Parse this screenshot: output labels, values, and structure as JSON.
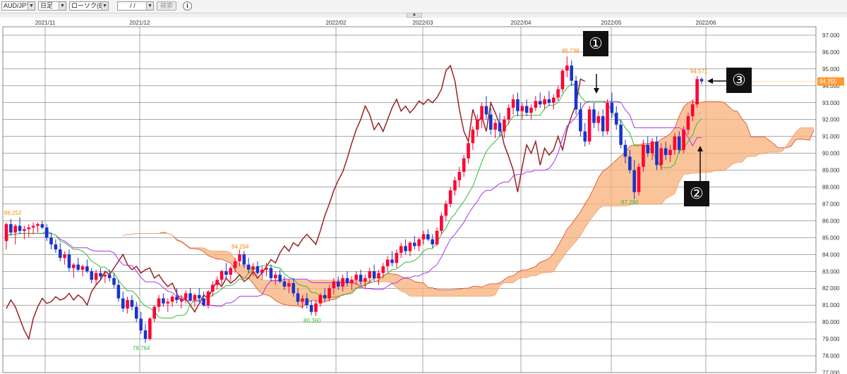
{
  "toolbar": {
    "pair": "AUD/JPY",
    "period": "日足",
    "chart_kind": "ローソク(BID)",
    "date_value": "/ /",
    "search_label": "検索",
    "info_label": "i"
  },
  "collapse_glyph": "▲",
  "callouts": {
    "one": "①",
    "two": "②",
    "three": "③"
  },
  "colors": {
    "up": "#ff0033",
    "down": "#1a33cc",
    "kijun": "#aa33ee",
    "tenkan": "#33bb33",
    "chikou": "#992222",
    "cloud_fill": "#f8b07a",
    "span_a": "#dd4422",
    "span_b": "#f0a070",
    "marker_high": "#ff8800",
    "marker_low": "#33bb33",
    "price_tag": "#ff9933"
  },
  "chart_data": {
    "type": "candlestick",
    "title": "",
    "ylim": [
      77.0,
      97.5
    ],
    "y_ticks": [
      "97.000",
      "96.000",
      "95.000",
      "94.000",
      "93.000",
      "92.000",
      "91.000",
      "90.000",
      "89.000",
      "88.000",
      "87.000",
      "86.000",
      "85.000",
      "84.000",
      "83.000",
      "82.000",
      "81.000",
      "80.000",
      "79.000",
      "78.000",
      "77.000"
    ],
    "x_labels": [
      "2021/11",
      "2021/12",
      "2022/02",
      "2022/03",
      "2022/04",
      "2022/05",
      "2022/06"
    ],
    "current_price": "94.255",
    "annotations": {
      "high_1": "95.738",
      "high_2": "94.571",
      "high_3": "84.294",
      "high_left": "86.252",
      "low_1": "78.764",
      "low_2": "80.360",
      "low_3": "87.290"
    },
    "candles": [
      {
        "o": 84.8,
        "h": 85.9,
        "l": 84.3,
        "c": 85.8
      },
      {
        "o": 85.8,
        "h": 86.1,
        "l": 85.1,
        "c": 85.3
      },
      {
        "o": 85.3,
        "h": 85.8,
        "l": 84.6,
        "c": 85.7
      },
      {
        "o": 85.7,
        "h": 86.2,
        "l": 85.2,
        "c": 85.4
      },
      {
        "o": 85.4,
        "h": 85.7,
        "l": 84.9,
        "c": 85.5
      },
      {
        "o": 85.5,
        "h": 85.8,
        "l": 85.0,
        "c": 85.6
      },
      {
        "o": 85.6,
        "h": 85.9,
        "l": 85.2,
        "c": 85.7
      },
      {
        "o": 85.7,
        "h": 85.9,
        "l": 85.3,
        "c": 85.8
      },
      {
        "o": 85.8,
        "h": 86.0,
        "l": 85.5,
        "c": 85.6
      },
      {
        "o": 85.6,
        "h": 85.8,
        "l": 84.8,
        "c": 85.0
      },
      {
        "o": 85.0,
        "h": 85.3,
        "l": 84.3,
        "c": 84.6
      },
      {
        "o": 84.6,
        "h": 84.9,
        "l": 84.1,
        "c": 84.3
      },
      {
        "o": 84.3,
        "h": 84.7,
        "l": 83.6,
        "c": 83.8
      },
      {
        "o": 83.8,
        "h": 84.2,
        "l": 83.4,
        "c": 84.0
      },
      {
        "o": 84.0,
        "h": 84.3,
        "l": 83.0,
        "c": 83.2
      },
      {
        "o": 83.2,
        "h": 83.5,
        "l": 82.6,
        "c": 83.4
      },
      {
        "o": 83.4,
        "h": 83.8,
        "l": 83.0,
        "c": 83.1
      },
      {
        "o": 83.1,
        "h": 83.4,
        "l": 82.7,
        "c": 83.3
      },
      {
        "o": 83.3,
        "h": 83.7,
        "l": 82.9,
        "c": 83.0
      },
      {
        "o": 83.0,
        "h": 83.2,
        "l": 82.3,
        "c": 82.5
      },
      {
        "o": 82.5,
        "h": 83.1,
        "l": 82.2,
        "c": 82.9
      },
      {
        "o": 82.9,
        "h": 83.2,
        "l": 82.5,
        "c": 82.7
      },
      {
        "o": 82.7,
        "h": 83.0,
        "l": 82.3,
        "c": 82.8
      },
      {
        "o": 82.8,
        "h": 83.1,
        "l": 82.4,
        "c": 82.6
      },
      {
        "o": 82.6,
        "h": 82.9,
        "l": 82.0,
        "c": 82.2
      },
      {
        "o": 82.2,
        "h": 82.5,
        "l": 81.2,
        "c": 81.4
      },
      {
        "o": 81.4,
        "h": 81.8,
        "l": 80.6,
        "c": 80.8
      },
      {
        "o": 80.8,
        "h": 81.5,
        "l": 80.5,
        "c": 81.3
      },
      {
        "o": 81.3,
        "h": 81.6,
        "l": 80.7,
        "c": 80.9
      },
      {
        "o": 80.9,
        "h": 81.2,
        "l": 80.0,
        "c": 80.2
      },
      {
        "o": 80.2,
        "h": 80.6,
        "l": 79.3,
        "c": 79.5
      },
      {
        "o": 79.5,
        "h": 79.9,
        "l": 78.76,
        "c": 79.0
      },
      {
        "o": 79.0,
        "h": 80.3,
        "l": 78.9,
        "c": 80.2
      },
      {
        "o": 80.2,
        "h": 81.0,
        "l": 80.0,
        "c": 80.9
      },
      {
        "o": 80.9,
        "h": 81.6,
        "l": 80.6,
        "c": 81.4
      },
      {
        "o": 81.4,
        "h": 81.7,
        "l": 80.9,
        "c": 81.1
      },
      {
        "o": 81.1,
        "h": 81.4,
        "l": 80.6,
        "c": 81.2
      },
      {
        "o": 81.2,
        "h": 81.6,
        "l": 80.9,
        "c": 81.5
      },
      {
        "o": 81.5,
        "h": 82.0,
        "l": 81.1,
        "c": 81.3
      },
      {
        "o": 81.3,
        "h": 81.6,
        "l": 80.8,
        "c": 81.4
      },
      {
        "o": 81.4,
        "h": 81.9,
        "l": 81.1,
        "c": 81.7
      },
      {
        "o": 81.7,
        "h": 82.0,
        "l": 81.2,
        "c": 81.3
      },
      {
        "o": 81.3,
        "h": 81.7,
        "l": 80.9,
        "c": 81.6
      },
      {
        "o": 81.6,
        "h": 82.0,
        "l": 81.2,
        "c": 81.4
      },
      {
        "o": 81.4,
        "h": 81.8,
        "l": 80.9,
        "c": 81.0
      },
      {
        "o": 81.0,
        "h": 81.9,
        "l": 80.8,
        "c": 81.8
      },
      {
        "o": 81.8,
        "h": 82.4,
        "l": 81.5,
        "c": 82.2
      },
      {
        "o": 82.2,
        "h": 82.7,
        "l": 81.9,
        "c": 82.5
      },
      {
        "o": 82.5,
        "h": 83.1,
        "l": 82.2,
        "c": 83.0
      },
      {
        "o": 83.0,
        "h": 83.5,
        "l": 82.6,
        "c": 82.8
      },
      {
        "o": 82.8,
        "h": 83.3,
        "l": 82.4,
        "c": 83.2
      },
      {
        "o": 83.2,
        "h": 83.8,
        "l": 82.9,
        "c": 83.6
      },
      {
        "o": 83.6,
        "h": 84.29,
        "l": 83.3,
        "c": 84.0
      },
      {
        "o": 84.0,
        "h": 84.2,
        "l": 83.2,
        "c": 83.4
      },
      {
        "o": 83.4,
        "h": 83.8,
        "l": 82.9,
        "c": 83.1
      },
      {
        "o": 83.1,
        "h": 83.5,
        "l": 82.7,
        "c": 83.3
      },
      {
        "o": 83.3,
        "h": 83.6,
        "l": 82.8,
        "c": 82.9
      },
      {
        "o": 82.9,
        "h": 83.3,
        "l": 82.5,
        "c": 83.1
      },
      {
        "o": 83.1,
        "h": 83.5,
        "l": 82.7,
        "c": 83.2
      },
      {
        "o": 83.2,
        "h": 83.4,
        "l": 82.4,
        "c": 82.6
      },
      {
        "o": 82.6,
        "h": 83.0,
        "l": 82.2,
        "c": 82.8
      },
      {
        "o": 82.8,
        "h": 83.1,
        "l": 82.3,
        "c": 82.4
      },
      {
        "o": 82.4,
        "h": 82.7,
        "l": 81.9,
        "c": 82.1
      },
      {
        "o": 82.1,
        "h": 82.5,
        "l": 81.7,
        "c": 82.3
      },
      {
        "o": 82.3,
        "h": 82.6,
        "l": 81.5,
        "c": 81.7
      },
      {
        "o": 81.7,
        "h": 82.0,
        "l": 81.0,
        "c": 81.2
      },
      {
        "o": 81.2,
        "h": 81.6,
        "l": 80.8,
        "c": 81.4
      },
      {
        "o": 81.4,
        "h": 81.7,
        "l": 80.8,
        "c": 81.0
      },
      {
        "o": 81.0,
        "h": 81.3,
        "l": 80.4,
        "c": 80.6
      },
      {
        "o": 80.6,
        "h": 81.3,
        "l": 80.36,
        "c": 81.1
      },
      {
        "o": 81.1,
        "h": 81.7,
        "l": 80.9,
        "c": 81.6
      },
      {
        "o": 81.6,
        "h": 82.0,
        "l": 81.2,
        "c": 81.4
      },
      {
        "o": 81.4,
        "h": 82.2,
        "l": 81.2,
        "c": 82.0
      },
      {
        "o": 82.0,
        "h": 82.6,
        "l": 81.6,
        "c": 82.4
      },
      {
        "o": 82.4,
        "h": 82.7,
        "l": 81.9,
        "c": 82.1
      },
      {
        "o": 82.1,
        "h": 82.8,
        "l": 81.8,
        "c": 82.6
      },
      {
        "o": 82.6,
        "h": 83.0,
        "l": 82.1,
        "c": 82.3
      },
      {
        "o": 82.3,
        "h": 82.7,
        "l": 81.9,
        "c": 82.5
      },
      {
        "o": 82.5,
        "h": 83.0,
        "l": 82.2,
        "c": 82.8
      },
      {
        "o": 82.8,
        "h": 83.1,
        "l": 82.2,
        "c": 82.4
      },
      {
        "o": 82.4,
        "h": 82.8,
        "l": 82.0,
        "c": 82.6
      },
      {
        "o": 82.6,
        "h": 83.2,
        "l": 82.3,
        "c": 83.0
      },
      {
        "o": 83.0,
        "h": 83.4,
        "l": 82.4,
        "c": 82.6
      },
      {
        "o": 82.6,
        "h": 83.1,
        "l": 82.2,
        "c": 82.9
      },
      {
        "o": 82.9,
        "h": 83.5,
        "l": 82.6,
        "c": 83.3
      },
      {
        "o": 83.3,
        "h": 83.9,
        "l": 83.0,
        "c": 83.7
      },
      {
        "o": 83.7,
        "h": 84.2,
        "l": 83.3,
        "c": 83.5
      },
      {
        "o": 83.5,
        "h": 84.3,
        "l": 83.2,
        "c": 84.1
      },
      {
        "o": 84.1,
        "h": 84.7,
        "l": 83.8,
        "c": 84.5
      },
      {
        "o": 84.5,
        "h": 84.9,
        "l": 84.0,
        "c": 84.2
      },
      {
        "o": 84.2,
        "h": 84.8,
        "l": 83.9,
        "c": 84.7
      },
      {
        "o": 84.7,
        "h": 85.1,
        "l": 84.3,
        "c": 84.5
      },
      {
        "o": 84.5,
        "h": 85.0,
        "l": 84.2,
        "c": 84.9
      },
      {
        "o": 84.9,
        "h": 85.4,
        "l": 84.6,
        "c": 85.2
      },
      {
        "o": 85.2,
        "h": 85.5,
        "l": 84.8,
        "c": 84.9
      },
      {
        "o": 84.9,
        "h": 85.2,
        "l": 84.4,
        "c": 84.6
      },
      {
        "o": 84.6,
        "h": 85.6,
        "l": 84.5,
        "c": 85.4
      },
      {
        "o": 85.4,
        "h": 86.5,
        "l": 85.2,
        "c": 86.3
      },
      {
        "o": 86.3,
        "h": 87.2,
        "l": 86.0,
        "c": 87.0
      },
      {
        "o": 87.0,
        "h": 88.0,
        "l": 86.8,
        "c": 87.8
      },
      {
        "o": 87.8,
        "h": 88.6,
        "l": 87.5,
        "c": 88.4
      },
      {
        "o": 88.4,
        "h": 89.2,
        "l": 88.0,
        "c": 88.9
      },
      {
        "o": 88.9,
        "h": 89.9,
        "l": 88.6,
        "c": 89.7
      },
      {
        "o": 89.7,
        "h": 90.8,
        "l": 89.4,
        "c": 90.6
      },
      {
        "o": 90.6,
        "h": 91.6,
        "l": 90.2,
        "c": 91.4
      },
      {
        "o": 91.4,
        "h": 92.3,
        "l": 91.0,
        "c": 92.0
      },
      {
        "o": 92.0,
        "h": 93.0,
        "l": 91.5,
        "c": 92.8
      },
      {
        "o": 92.8,
        "h": 93.4,
        "l": 92.0,
        "c": 92.3
      },
      {
        "o": 92.3,
        "h": 92.7,
        "l": 91.1,
        "c": 91.4
      },
      {
        "o": 91.4,
        "h": 92.0,
        "l": 90.9,
        "c": 91.8
      },
      {
        "o": 91.8,
        "h": 92.4,
        "l": 91.0,
        "c": 91.3
      },
      {
        "o": 91.3,
        "h": 92.2,
        "l": 90.9,
        "c": 92.0
      },
      {
        "o": 92.0,
        "h": 92.9,
        "l": 91.7,
        "c": 92.7
      },
      {
        "o": 92.7,
        "h": 93.5,
        "l": 92.3,
        "c": 93.2
      },
      {
        "o": 93.2,
        "h": 93.6,
        "l": 92.2,
        "c": 92.5
      },
      {
        "o": 92.5,
        "h": 93.0,
        "l": 92.0,
        "c": 92.8
      },
      {
        "o": 92.8,
        "h": 93.2,
        "l": 92.2,
        "c": 92.4
      },
      {
        "o": 92.4,
        "h": 92.9,
        "l": 92.0,
        "c": 92.7
      },
      {
        "o": 92.7,
        "h": 93.4,
        "l": 92.5,
        "c": 93.1
      },
      {
        "o": 93.1,
        "h": 93.6,
        "l": 92.7,
        "c": 92.9
      },
      {
        "o": 92.9,
        "h": 93.4,
        "l": 92.6,
        "c": 93.2
      },
      {
        "o": 93.2,
        "h": 93.7,
        "l": 92.8,
        "c": 93.0
      },
      {
        "o": 93.0,
        "h": 93.5,
        "l": 92.6,
        "c": 93.3
      },
      {
        "o": 93.3,
        "h": 94.0,
        "l": 93.1,
        "c": 93.8
      },
      {
        "o": 93.8,
        "h": 95.0,
        "l": 93.6,
        "c": 94.9
      },
      {
        "o": 94.9,
        "h": 95.74,
        "l": 94.5,
        "c": 95.2
      },
      {
        "o": 95.2,
        "h": 95.5,
        "l": 94.0,
        "c": 94.3
      },
      {
        "o": 94.3,
        "h": 94.6,
        "l": 92.3,
        "c": 92.6
      },
      {
        "o": 92.6,
        "h": 93.0,
        "l": 91.0,
        "c": 91.3
      },
      {
        "o": 91.3,
        "h": 91.8,
        "l": 90.4,
        "c": 90.7
      },
      {
        "o": 90.7,
        "h": 92.8,
        "l": 90.5,
        "c": 92.6
      },
      {
        "o": 92.6,
        "h": 93.0,
        "l": 91.5,
        "c": 91.8
      },
      {
        "o": 91.8,
        "h": 92.5,
        "l": 91.3,
        "c": 92.2
      },
      {
        "o": 92.2,
        "h": 92.6,
        "l": 91.0,
        "c": 91.3
      },
      {
        "o": 91.3,
        "h": 93.2,
        "l": 91.1,
        "c": 93.0
      },
      {
        "o": 93.0,
        "h": 93.6,
        "l": 92.1,
        "c": 92.4
      },
      {
        "o": 92.4,
        "h": 92.8,
        "l": 91.4,
        "c": 91.7
      },
      {
        "o": 91.7,
        "h": 92.0,
        "l": 90.3,
        "c": 90.5
      },
      {
        "o": 90.5,
        "h": 90.8,
        "l": 89.4,
        "c": 89.8
      },
      {
        "o": 89.8,
        "h": 90.2,
        "l": 88.8,
        "c": 89.0
      },
      {
        "o": 89.0,
        "h": 89.6,
        "l": 87.29,
        "c": 87.7
      },
      {
        "o": 87.7,
        "h": 89.4,
        "l": 87.5,
        "c": 89.2
      },
      {
        "o": 89.2,
        "h": 90.8,
        "l": 88.9,
        "c": 90.5
      },
      {
        "o": 90.5,
        "h": 91.0,
        "l": 89.8,
        "c": 90.0
      },
      {
        "o": 90.0,
        "h": 90.9,
        "l": 89.6,
        "c": 90.7
      },
      {
        "o": 90.7,
        "h": 91.0,
        "l": 89.0,
        "c": 89.3
      },
      {
        "o": 89.3,
        "h": 90.6,
        "l": 89.0,
        "c": 90.3
      },
      {
        "o": 90.3,
        "h": 90.7,
        "l": 89.6,
        "c": 89.9
      },
      {
        "o": 89.9,
        "h": 90.5,
        "l": 89.5,
        "c": 90.2
      },
      {
        "o": 90.2,
        "h": 91.2,
        "l": 89.9,
        "c": 91.0
      },
      {
        "o": 91.0,
        "h": 91.3,
        "l": 90.0,
        "c": 90.2
      },
      {
        "o": 90.2,
        "h": 91.6,
        "l": 90.0,
        "c": 91.4
      },
      {
        "o": 91.4,
        "h": 92.4,
        "l": 91.1,
        "c": 92.2
      },
      {
        "o": 92.2,
        "h": 93.2,
        "l": 91.9,
        "c": 92.9
      },
      {
        "o": 92.9,
        "h": 94.57,
        "l": 92.7,
        "c": 94.4
      },
      {
        "o": 94.4,
        "h": 94.5,
        "l": 94.1,
        "c": 94.26
      }
    ]
  }
}
